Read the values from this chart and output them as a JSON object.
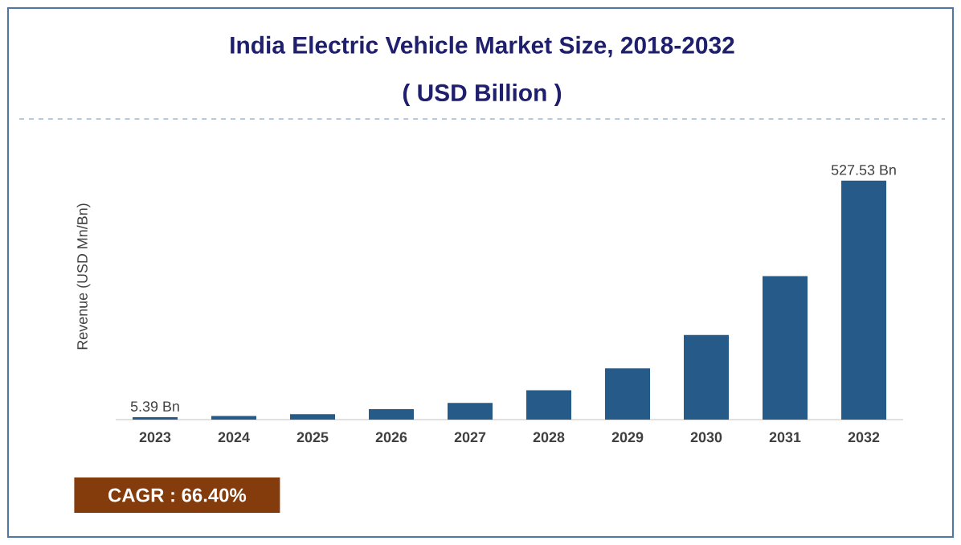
{
  "chart_data": {
    "type": "bar",
    "title": "India Electric Vehicle Market Size, 2018-2032",
    "subtitle": "( USD Billion )",
    "ylabel": "Revenue (USD Mn/Bn)",
    "categories": [
      "2023",
      "2024",
      "2025",
      "2026",
      "2027",
      "2028",
      "2029",
      "2030",
      "2031",
      "2032"
    ],
    "values": [
      5.39,
      8,
      12,
      23,
      37,
      65,
      113,
      187,
      317,
      527.53
    ],
    "value_labels": [
      "5.39 Bn",
      null,
      null,
      null,
      null,
      null,
      null,
      null,
      null,
      "527.53 Bn"
    ],
    "color": "#265a88",
    "annotations": [
      "CAGR : 66.40%"
    ]
  }
}
